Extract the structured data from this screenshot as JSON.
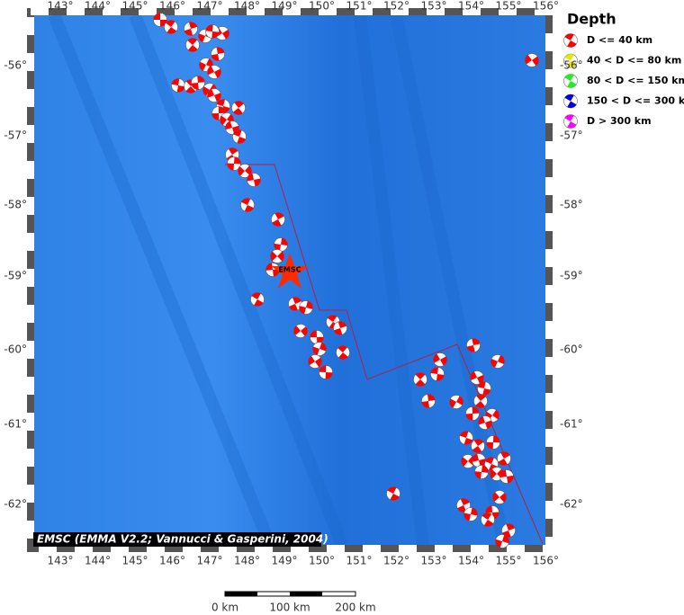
{
  "map": {
    "lon_labels": [
      "143°",
      "144°",
      "145°",
      "146°",
      "147°",
      "148°",
      "149°",
      "150°",
      "151°",
      "152°",
      "153°",
      "154°",
      "155°",
      "156°"
    ],
    "lat_labels": [
      "-56°",
      "-57°",
      "-58°",
      "-59°",
      "-60°",
      "-61°",
      "-62°"
    ],
    "legend": {
      "title": "Depth",
      "entries": [
        {
          "label": "D <= 40 km",
          "color": "#ff0000"
        },
        {
          "label": "40 < D <= 80 km",
          "color": "#e6e600"
        },
        {
          "label": "80 < D <= 150 km",
          "color": "#22ee22"
        },
        {
          "label": "150 < D <= 300 km",
          "color": "#0000ee"
        },
        {
          "label": "D > 300 km",
          "color": "#ff00ff"
        }
      ]
    },
    "epicenter_label": "EMSC",
    "credit": "EMSC (EMMA V2.2; Vannucci & Gasperini, 2004)",
    "scale_labels": [
      "0 km",
      "100 km",
      "200 km"
    ]
  }
}
